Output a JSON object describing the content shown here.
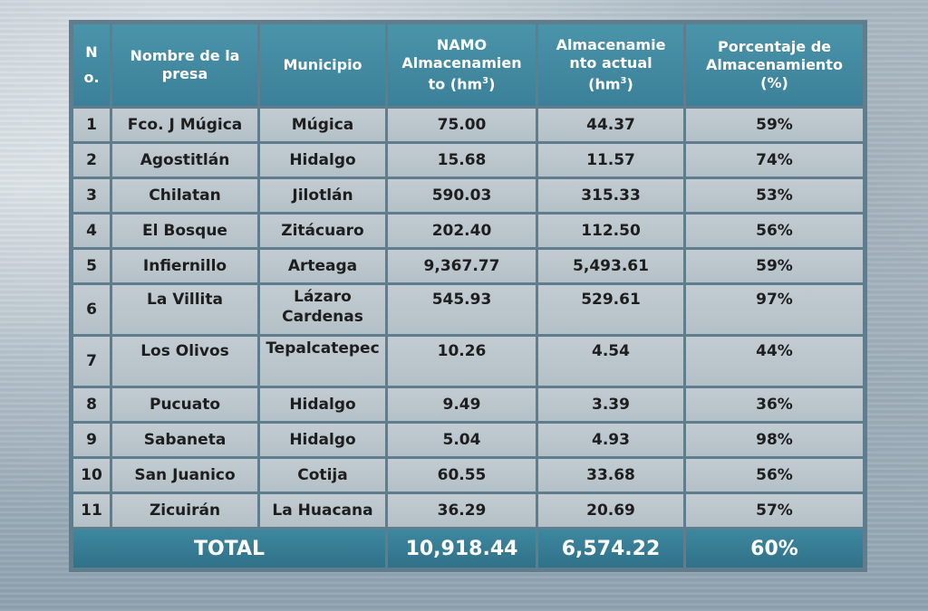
{
  "headers": {
    "no": "No.",
    "nombre": "Nombre de la presa",
    "municipio": "Municipio",
    "namo": "NAMO Almacenamiento (hm",
    "actual": "Almacenamiento actual (hm",
    "porcentaje": "Porcentaje de Almacenamiento (%)",
    "unit_sup": "3",
    "unit_close": ")"
  },
  "rows": [
    {
      "no": "1",
      "presa": "Fco. J Múgica",
      "municipio": "Múgica",
      "namo": "75.00",
      "actual": "44.37",
      "pct": "59%"
    },
    {
      "no": "2",
      "presa": "Agostitlán",
      "municipio": "Hidalgo",
      "namo": "15.68",
      "actual": "11.57",
      "pct": "74%"
    },
    {
      "no": "3",
      "presa": "Chilatan",
      "municipio": "Jilotlán",
      "namo": "590.03",
      "actual": "315.33",
      "pct": "53%"
    },
    {
      "no": "4",
      "presa": "El Bosque",
      "municipio": "Zitácuaro",
      "namo": "202.40",
      "actual": "112.50",
      "pct": "56%"
    },
    {
      "no": "5",
      "presa": "Infiernillo",
      "municipio": "Arteaga",
      "namo": "9,367.77",
      "actual": "5,493.61",
      "pct": "59%"
    },
    {
      "no": "6",
      "presa": "La Villita",
      "municipio": "Lázaro Cardenas",
      "namo": "545.93",
      "actual": "529.61",
      "pct": "97%"
    },
    {
      "no": "7",
      "presa": "Los Olivos",
      "municipio": "Tepalcatepec",
      "namo": "10.26",
      "actual": "4.54",
      "pct": "44%"
    },
    {
      "no": "8",
      "presa": "Pucuato",
      "municipio": "Hidalgo",
      "namo": "9.49",
      "actual": "3.39",
      "pct": "36%"
    },
    {
      "no": "9",
      "presa": "Sabaneta",
      "municipio": "Hidalgo",
      "namo": "5.04",
      "actual": "4.93",
      "pct": "98%"
    },
    {
      "no": "10",
      "presa": "San Juanico",
      "municipio": "Cotija",
      "namo": "60.55",
      "actual": "33.68",
      "pct": "56%"
    },
    {
      "no": "11",
      "presa": "Zicuirán",
      "municipio": "La Huacana",
      "namo": "36.29",
      "actual": "20.69",
      "pct": "57%"
    }
  ],
  "total": {
    "label": "TOTAL",
    "namo": "10,918.44",
    "actual": "6,574.22",
    "pct": "60%"
  }
}
